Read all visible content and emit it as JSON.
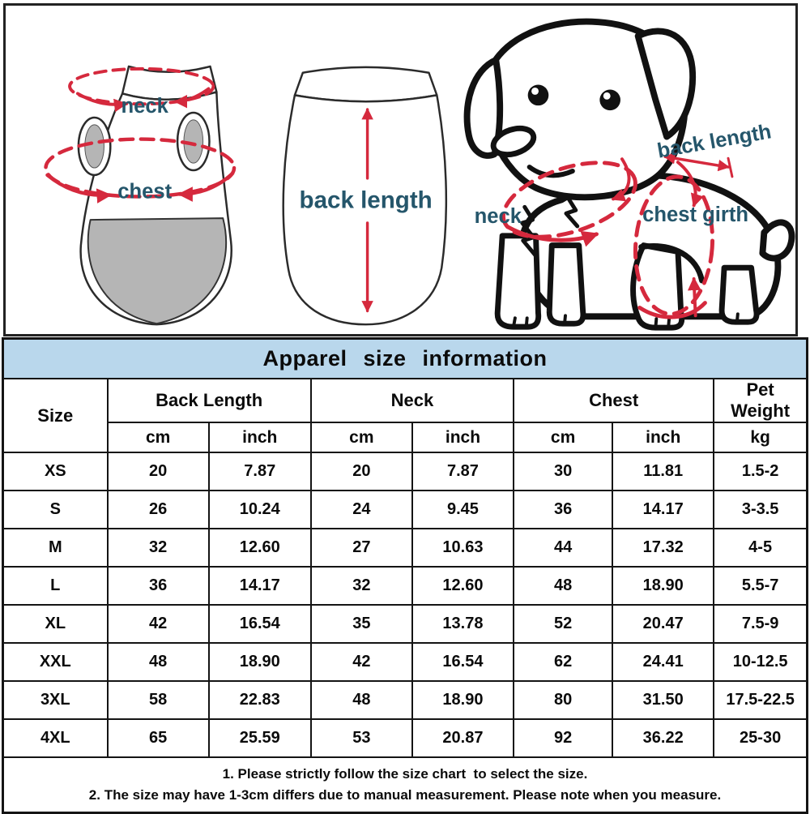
{
  "colors": {
    "accent_red": "#d5293d",
    "label_teal": "#25566b",
    "table_header_bg": "#b9d7ec",
    "table_border": "#141414",
    "garment_gray": "#b5b5b5"
  },
  "diagram": {
    "front_garment": {
      "neck_label": "neck",
      "chest_label": "chest"
    },
    "back_garment": {
      "back_length_label": "back length"
    },
    "dog": {
      "neck_label": "neck",
      "back_length_label": "back length",
      "chest_girth_label": "chest girth"
    }
  },
  "table": {
    "title": "Apparel size information",
    "size_header": "Size",
    "groups": [
      {
        "label": "Back Length"
      },
      {
        "label": "Neck"
      },
      {
        "label": "Chest"
      },
      {
        "label": "Pet Weight"
      }
    ],
    "units": [
      "cm",
      "inch",
      "cm",
      "inch",
      "cm",
      "inch",
      "kg"
    ],
    "rows": [
      {
        "size": "XS",
        "values": [
          "20",
          "7.87",
          "20",
          "7.87",
          "30",
          "11.81",
          "1.5-2"
        ]
      },
      {
        "size": "S",
        "values": [
          "26",
          "10.24",
          "24",
          "9.45",
          "36",
          "14.17",
          "3-3.5"
        ]
      },
      {
        "size": "M",
        "values": [
          "32",
          "12.60",
          "27",
          "10.63",
          "44",
          "17.32",
          "4-5"
        ]
      },
      {
        "size": "L",
        "values": [
          "36",
          "14.17",
          "32",
          "12.60",
          "48",
          "18.90",
          "5.5-7"
        ]
      },
      {
        "size": "XL",
        "values": [
          "42",
          "16.54",
          "35",
          "13.78",
          "52",
          "20.47",
          "7.5-9"
        ]
      },
      {
        "size": "XXL",
        "values": [
          "48",
          "18.90",
          "42",
          "16.54",
          "62",
          "24.41",
          "10-12.5"
        ]
      },
      {
        "size": "3XL",
        "values": [
          "58",
          "22.83",
          "48",
          "18.90",
          "80",
          "31.50",
          "17.5-22.5"
        ]
      },
      {
        "size": "4XL",
        "values": [
          "65",
          "25.59",
          "53",
          "20.87",
          "92",
          "36.22",
          "25-30"
        ]
      }
    ],
    "notes": [
      "1. Please strictly follow the size chart  to select the size.",
      "2. The size may have 1-3cm differs due to manual measurement. Please note when you measure."
    ]
  }
}
